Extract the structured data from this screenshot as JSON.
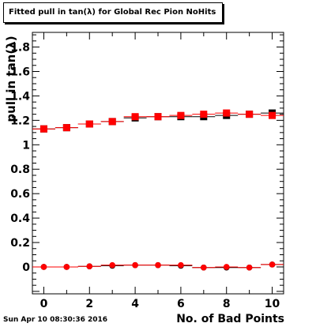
{
  "chart_data": {
    "type": "scatter",
    "title": "Fitted pull in tan(λ) for Global Rec Pion NoHits",
    "xlabel": "No. of Bad Points",
    "ylabel": "pull in tan(λ)",
    "xlim": [
      -0.5,
      10.5
    ],
    "ylim": [
      -0.22,
      1.92
    ],
    "x_ticks": [
      "0",
      "2",
      "4",
      "6",
      "8",
      "10"
    ],
    "y_ticks": [
      "0",
      "0.2",
      "0.4",
      "0.6",
      "0.8",
      "1",
      "1.2",
      "1.4",
      "1.6",
      "1.8"
    ],
    "grid": false,
    "legend": "none",
    "series": [
      {
        "marker": "square",
        "color": "#000000",
        "x": [
          0,
          1,
          2,
          3,
          4,
          5,
          6,
          7,
          8,
          9,
          10
        ],
        "y": [
          1.13,
          1.14,
          1.17,
          1.19,
          1.22,
          1.23,
          1.23,
          1.23,
          1.24,
          1.25,
          1.26
        ]
      },
      {
        "marker": "square",
        "color": "#ff0000",
        "x": [
          0,
          1,
          2,
          3,
          4,
          5,
          6,
          7,
          8,
          9,
          10
        ],
        "y": [
          1.13,
          1.14,
          1.17,
          1.19,
          1.23,
          1.23,
          1.24,
          1.25,
          1.26,
          1.25,
          1.24
        ]
      },
      {
        "marker": "circle",
        "color": "#000000",
        "x": [
          0,
          1,
          2,
          3,
          4,
          5,
          6,
          7,
          8,
          9,
          10
        ],
        "y": [
          0.0,
          0.0,
          0.005,
          0.01,
          0.015,
          0.015,
          0.01,
          -0.005,
          -0.005,
          -0.005,
          0.02
        ]
      },
      {
        "marker": "circle",
        "color": "#ff0000",
        "x": [
          0,
          1,
          2,
          3,
          4,
          5,
          6,
          7,
          8,
          9,
          10
        ],
        "y": [
          0.0,
          0.0,
          0.005,
          0.015,
          0.015,
          0.015,
          0.015,
          -0.005,
          0.0,
          -0.005,
          0.02
        ]
      }
    ]
  },
  "timestamp": "Sun Apr 10 08:30:36 2016"
}
